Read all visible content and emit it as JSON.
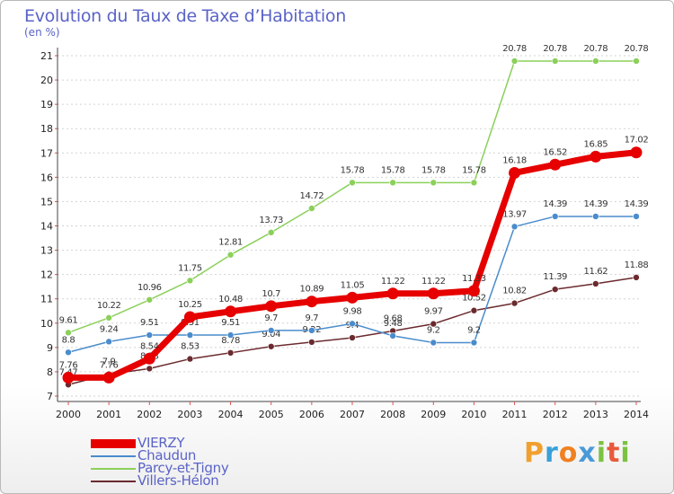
{
  "title": "Evolution du Taux de Taxe d’Habitation",
  "unit_label": "(en %)",
  "logo": {
    "text": "Proxiti",
    "letters": [
      {
        "ch": "P",
        "color": "#f0a030"
      },
      {
        "ch": "r",
        "color": "#3aa0d8"
      },
      {
        "ch": "o",
        "color": "#f08020"
      },
      {
        "ch": "x",
        "color": "#4a9ad8"
      },
      {
        "ch": "i",
        "color": "#7cc242"
      },
      {
        "ch": "t",
        "color": "#e85a3a"
      },
      {
        "ch": "i",
        "color": "#7cc242"
      }
    ]
  },
  "chart_data": {
    "type": "line",
    "title": "Evolution du Taux de Taxe d’Habitation",
    "ylabel": "(en %)",
    "xlabel": "",
    "ylim": [
      7,
      21
    ],
    "yticks": [
      7,
      8,
      9,
      10,
      11,
      12,
      13,
      14,
      15,
      16,
      17,
      18,
      19,
      20,
      21
    ],
    "x": [
      "2000",
      "2001",
      "2002",
      "2003",
      "2004",
      "2005",
      "2006",
      "2007",
      "2008",
      "2009",
      "2010",
      "2011",
      "2012",
      "2013",
      "2014"
    ],
    "grid": "horizontal dashed",
    "legend": "bottom-left",
    "series": [
      {
        "name": "Villers-Hélon",
        "color": "#6b2a2e",
        "values": [
          7.47,
          7.9,
          8.13,
          8.53,
          8.78,
          9.04,
          9.22,
          9.4,
          9.68,
          9.97,
          10.52,
          10.82,
          11.39,
          11.62,
          11.88
        ],
        "labels": [
          "7.47",
          "7.9",
          "8.13",
          "8.53",
          "8.78",
          "9.04",
          "9.22",
          "9.4",
          "9.68",
          "9.97",
          "10.52",
          "10.82",
          "11.39",
          "11.62",
          "11.88"
        ]
      },
      {
        "name": "Chaudun",
        "color": "#4a8ccc",
        "values": [
          8.8,
          9.24,
          9.51,
          9.51,
          9.51,
          9.7,
          9.7,
          9.98,
          9.48,
          9.2,
          9.2,
          13.97,
          14.39,
          14.39,
          14.39
        ],
        "labels": [
          "8.8",
          "9.24",
          "9.51",
          "9.51",
          "9.51",
          "9.7",
          "9.7",
          "9.98",
          "9.48",
          "9.2",
          "9.2",
          "13.97",
          "14.39",
          "14.39",
          "14.39"
        ]
      },
      {
        "name": "Parcy-et-Tigny",
        "color": "#8bd05a",
        "values": [
          9.61,
          10.22,
          10.96,
          11.75,
          12.81,
          13.73,
          14.72,
          15.78,
          15.78,
          15.78,
          15.78,
          20.78,
          20.78,
          20.78,
          20.78
        ],
        "labels": [
          "9.61",
          "10.22",
          "10.96",
          "11.75",
          "12.81",
          "13.73",
          "14.72",
          "15.78",
          "15.78",
          "15.78",
          "15.78",
          "20.78",
          "20.78",
          "20.78",
          "20.78"
        ]
      },
      {
        "name": "VIERZY",
        "color": "#e60000",
        "values": [
          7.76,
          7.76,
          8.54,
          10.25,
          10.48,
          10.7,
          10.89,
          11.05,
          11.22,
          11.22,
          11.33,
          16.18,
          16.52,
          16.85,
          17.02
        ],
        "labels": [
          "7.76",
          "7.76",
          "8.54",
          "10.25",
          "10.48",
          "10.7",
          "10.89",
          "11.05",
          "11.22",
          "11.22",
          "11.33",
          "16.18",
          "16.52",
          "16.85",
          "17.02"
        ]
      }
    ],
    "legend_order": [
      "VIERZY",
      "Chaudun",
      "Parcy-et-Tigny",
      "Villers-Hélon"
    ]
  }
}
